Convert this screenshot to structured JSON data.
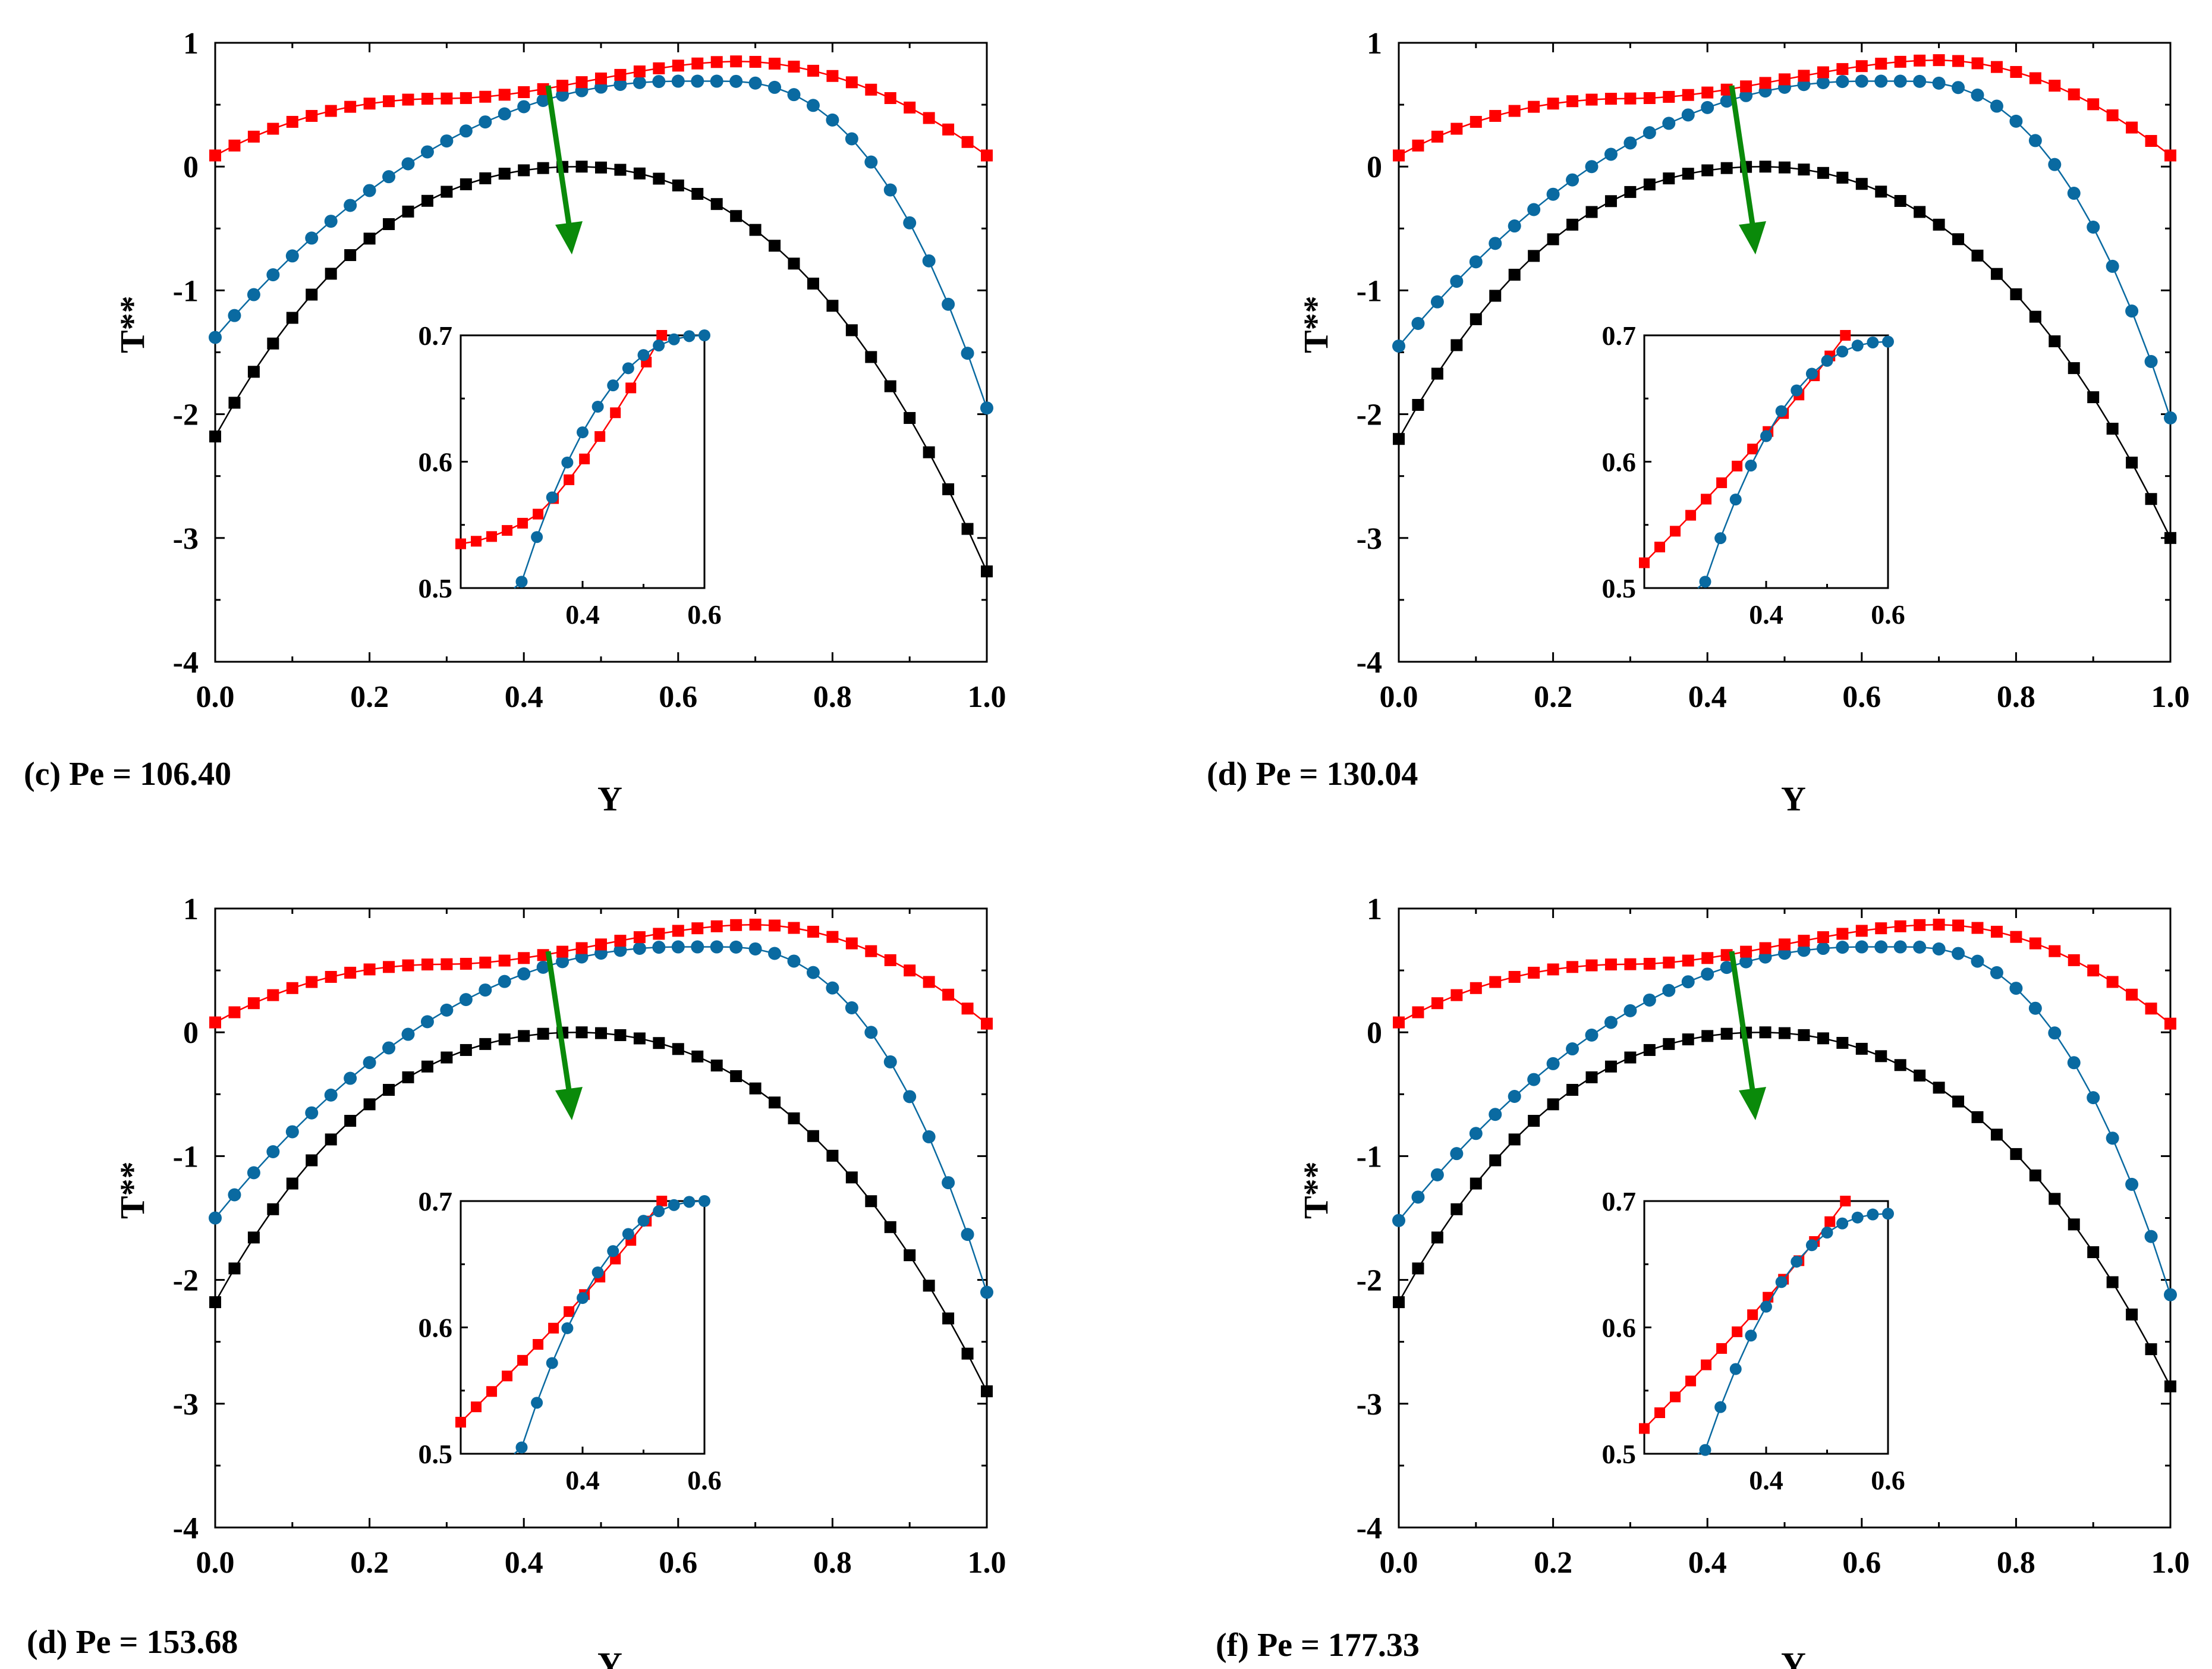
{
  "figure": {
    "x_label": "Y",
    "y_label": "T**"
  },
  "chart_data": [
    {
      "type": "line",
      "panel_id": "c",
      "caption": "(c) Pe = 106.40",
      "xlabel": "Y",
      "ylabel": "T**",
      "xlim": [
        0,
        1
      ],
      "ylim": [
        -4,
        1
      ],
      "xticks": [
        "0.0",
        "0.2",
        "0.4",
        "0.6",
        "0.8",
        "1.0"
      ],
      "yticks": [
        "-4",
        "-3",
        "-2",
        "-1",
        "0",
        "1"
      ],
      "series": [
        {
          "name": "black-squares",
          "color": "#000000",
          "marker": "square",
          "x0": 0,
          "x1": 1,
          "n": 41,
          "peak_x": 0.47,
          "peak_y": 0.0,
          "left_y": -2.18,
          "right_y": -3.27
        },
        {
          "name": "blue-circles",
          "color": "#0a6aa1",
          "marker": "circle",
          "x0": 0,
          "x1": 1,
          "n": 41,
          "plateau_y": 0.69,
          "plateau_start": 0.6,
          "plateau_end": 0.66,
          "left_y": -1.38,
          "right_y": -1.95
        },
        {
          "name": "red-squares",
          "color": "#ff0000",
          "marker": "square",
          "x0": 0,
          "x1": 1,
          "n": 41,
          "peak_x": 0.68,
          "peak_y": 0.85,
          "left_y": 0.09,
          "right_y": 0.09
        }
      ],
      "inset": {
        "xlim": [
          0.2,
          0.6
        ],
        "ylim": [
          0.5,
          0.7
        ],
        "xticks": [
          "0.4",
          "0.6"
        ],
        "yticks": [
          "0.5",
          "0.6",
          "0.7"
        ],
        "red": {
          "start_y": 0.535,
          "end_x": 0.53,
          "end_y": 0.7
        },
        "blue": {
          "start_x": 0.3,
          "start_y": 0.505,
          "end_x": 0.6,
          "end_y": 0.7
        }
      }
    },
    {
      "type": "line",
      "panel_id": "d1",
      "caption": "(d) Pe = 130.04",
      "xlabel": "Y",
      "ylabel": "T**",
      "xlim": [
        0,
        1
      ],
      "ylim": [
        -4,
        1
      ],
      "xticks": [
        "0.0",
        "0.2",
        "0.4",
        "0.6",
        "0.8",
        "1.0"
      ],
      "yticks": [
        "-4",
        "-3",
        "-2",
        "-1",
        "0",
        "1"
      ],
      "series": [
        {
          "name": "black-squares",
          "color": "#000000",
          "marker": "square",
          "x0": 0,
          "x1": 1,
          "n": 41,
          "peak_x": 0.47,
          "peak_y": 0.0,
          "left_y": -2.2,
          "right_y": -3.0
        },
        {
          "name": "blue-circles",
          "color": "#0a6aa1",
          "marker": "circle",
          "x0": 0,
          "x1": 1,
          "n": 41,
          "plateau_y": 0.69,
          "plateau_start": 0.6,
          "plateau_end": 0.66,
          "left_y": -1.45,
          "right_y": -2.03
        },
        {
          "name": "red-squares",
          "color": "#ff0000",
          "marker": "square",
          "x0": 0,
          "x1": 1,
          "n": 41,
          "peak_x": 0.7,
          "peak_y": 0.86,
          "left_y": 0.09,
          "right_y": 0.09
        }
      ],
      "inset": {
        "xlim": [
          0.2,
          0.6
        ],
        "ylim": [
          0.5,
          0.7
        ],
        "xticks": [
          "0.4",
          "0.6"
        ],
        "yticks": [
          "0.5",
          "0.6",
          "0.7"
        ],
        "red": {
          "start_y": 0.52,
          "end_x": 0.53,
          "end_y": 0.7
        },
        "blue": {
          "start_x": 0.3,
          "start_y": 0.505,
          "end_x": 0.6,
          "end_y": 0.695
        }
      }
    },
    {
      "type": "line",
      "panel_id": "d2",
      "caption": "(d) Pe = 153.68",
      "xlabel": "Y",
      "ylabel": "T**",
      "xlim": [
        0,
        1
      ],
      "ylim": [
        -4,
        1
      ],
      "xticks": [
        "0.0",
        "0.2",
        "0.4",
        "0.6",
        "0.8",
        "1.0"
      ],
      "yticks": [
        "-4",
        "-3",
        "-2",
        "-1",
        "0",
        "1"
      ],
      "series": [
        {
          "name": "black-squares",
          "color": "#000000",
          "marker": "square",
          "x0": 0,
          "x1": 1,
          "n": 41,
          "peak_x": 0.47,
          "peak_y": 0.0,
          "left_y": -2.18,
          "right_y": -2.9
        },
        {
          "name": "blue-circles",
          "color": "#0a6aa1",
          "marker": "circle",
          "x0": 0,
          "x1": 1,
          "n": 41,
          "plateau_y": 0.69,
          "plateau_start": 0.6,
          "plateau_end": 0.66,
          "left_y": -1.5,
          "right_y": -2.1
        },
        {
          "name": "red-squares",
          "color": "#ff0000",
          "marker": "square",
          "x0": 0,
          "x1": 1,
          "n": 41,
          "peak_x": 0.7,
          "peak_y": 0.87,
          "left_y": 0.08,
          "right_y": 0.07
        }
      ],
      "inset": {
        "xlim": [
          0.2,
          0.6
        ],
        "ylim": [
          0.5,
          0.7
        ],
        "xticks": [
          "0.4",
          "0.6"
        ],
        "yticks": [
          "0.5",
          "0.6",
          "0.7"
        ],
        "red": {
          "start_y": 0.525,
          "end_x": 0.53,
          "end_y": 0.7
        },
        "blue": {
          "start_x": 0.3,
          "start_y": 0.505,
          "end_x": 0.6,
          "end_y": 0.7
        }
      }
    },
    {
      "type": "line",
      "panel_id": "f",
      "caption": "(f) Pe = 177.33",
      "xlabel": "Y",
      "ylabel": "T**",
      "xlim": [
        0,
        1
      ],
      "ylim": [
        -4,
        1
      ],
      "xticks": [
        "0.0",
        "0.2",
        "0.4",
        "0.6",
        "0.8",
        "1.0"
      ],
      "yticks": [
        "-4",
        "-3",
        "-2",
        "-1",
        "0",
        "1"
      ],
      "series": [
        {
          "name": "black-squares",
          "color": "#000000",
          "marker": "square",
          "x0": 0,
          "x1": 1,
          "n": 41,
          "peak_x": 0.47,
          "peak_y": 0.0,
          "left_y": -2.18,
          "right_y": -2.86
        },
        {
          "name": "blue-circles",
          "color": "#0a6aa1",
          "marker": "circle",
          "x0": 0,
          "x1": 1,
          "n": 41,
          "plateau_y": 0.69,
          "plateau_start": 0.6,
          "plateau_end": 0.66,
          "left_y": -1.52,
          "right_y": -2.12
        },
        {
          "name": "red-squares",
          "color": "#ff0000",
          "marker": "square",
          "x0": 0,
          "x1": 1,
          "n": 41,
          "peak_x": 0.7,
          "peak_y": 0.87,
          "left_y": 0.08,
          "right_y": 0.07
        }
      ],
      "inset": {
        "xlim": [
          0.2,
          0.6
        ],
        "ylim": [
          0.5,
          0.7
        ],
        "xticks": [
          "0.4",
          "0.6"
        ],
        "yticks": [
          "0.5",
          "0.6",
          "0.7"
        ],
        "red": {
          "start_y": 0.52,
          "end_x": 0.53,
          "end_y": 0.7
        },
        "blue": {
          "start_x": 0.3,
          "start_y": 0.503,
          "end_x": 0.6,
          "end_y": 0.69
        }
      }
    }
  ]
}
